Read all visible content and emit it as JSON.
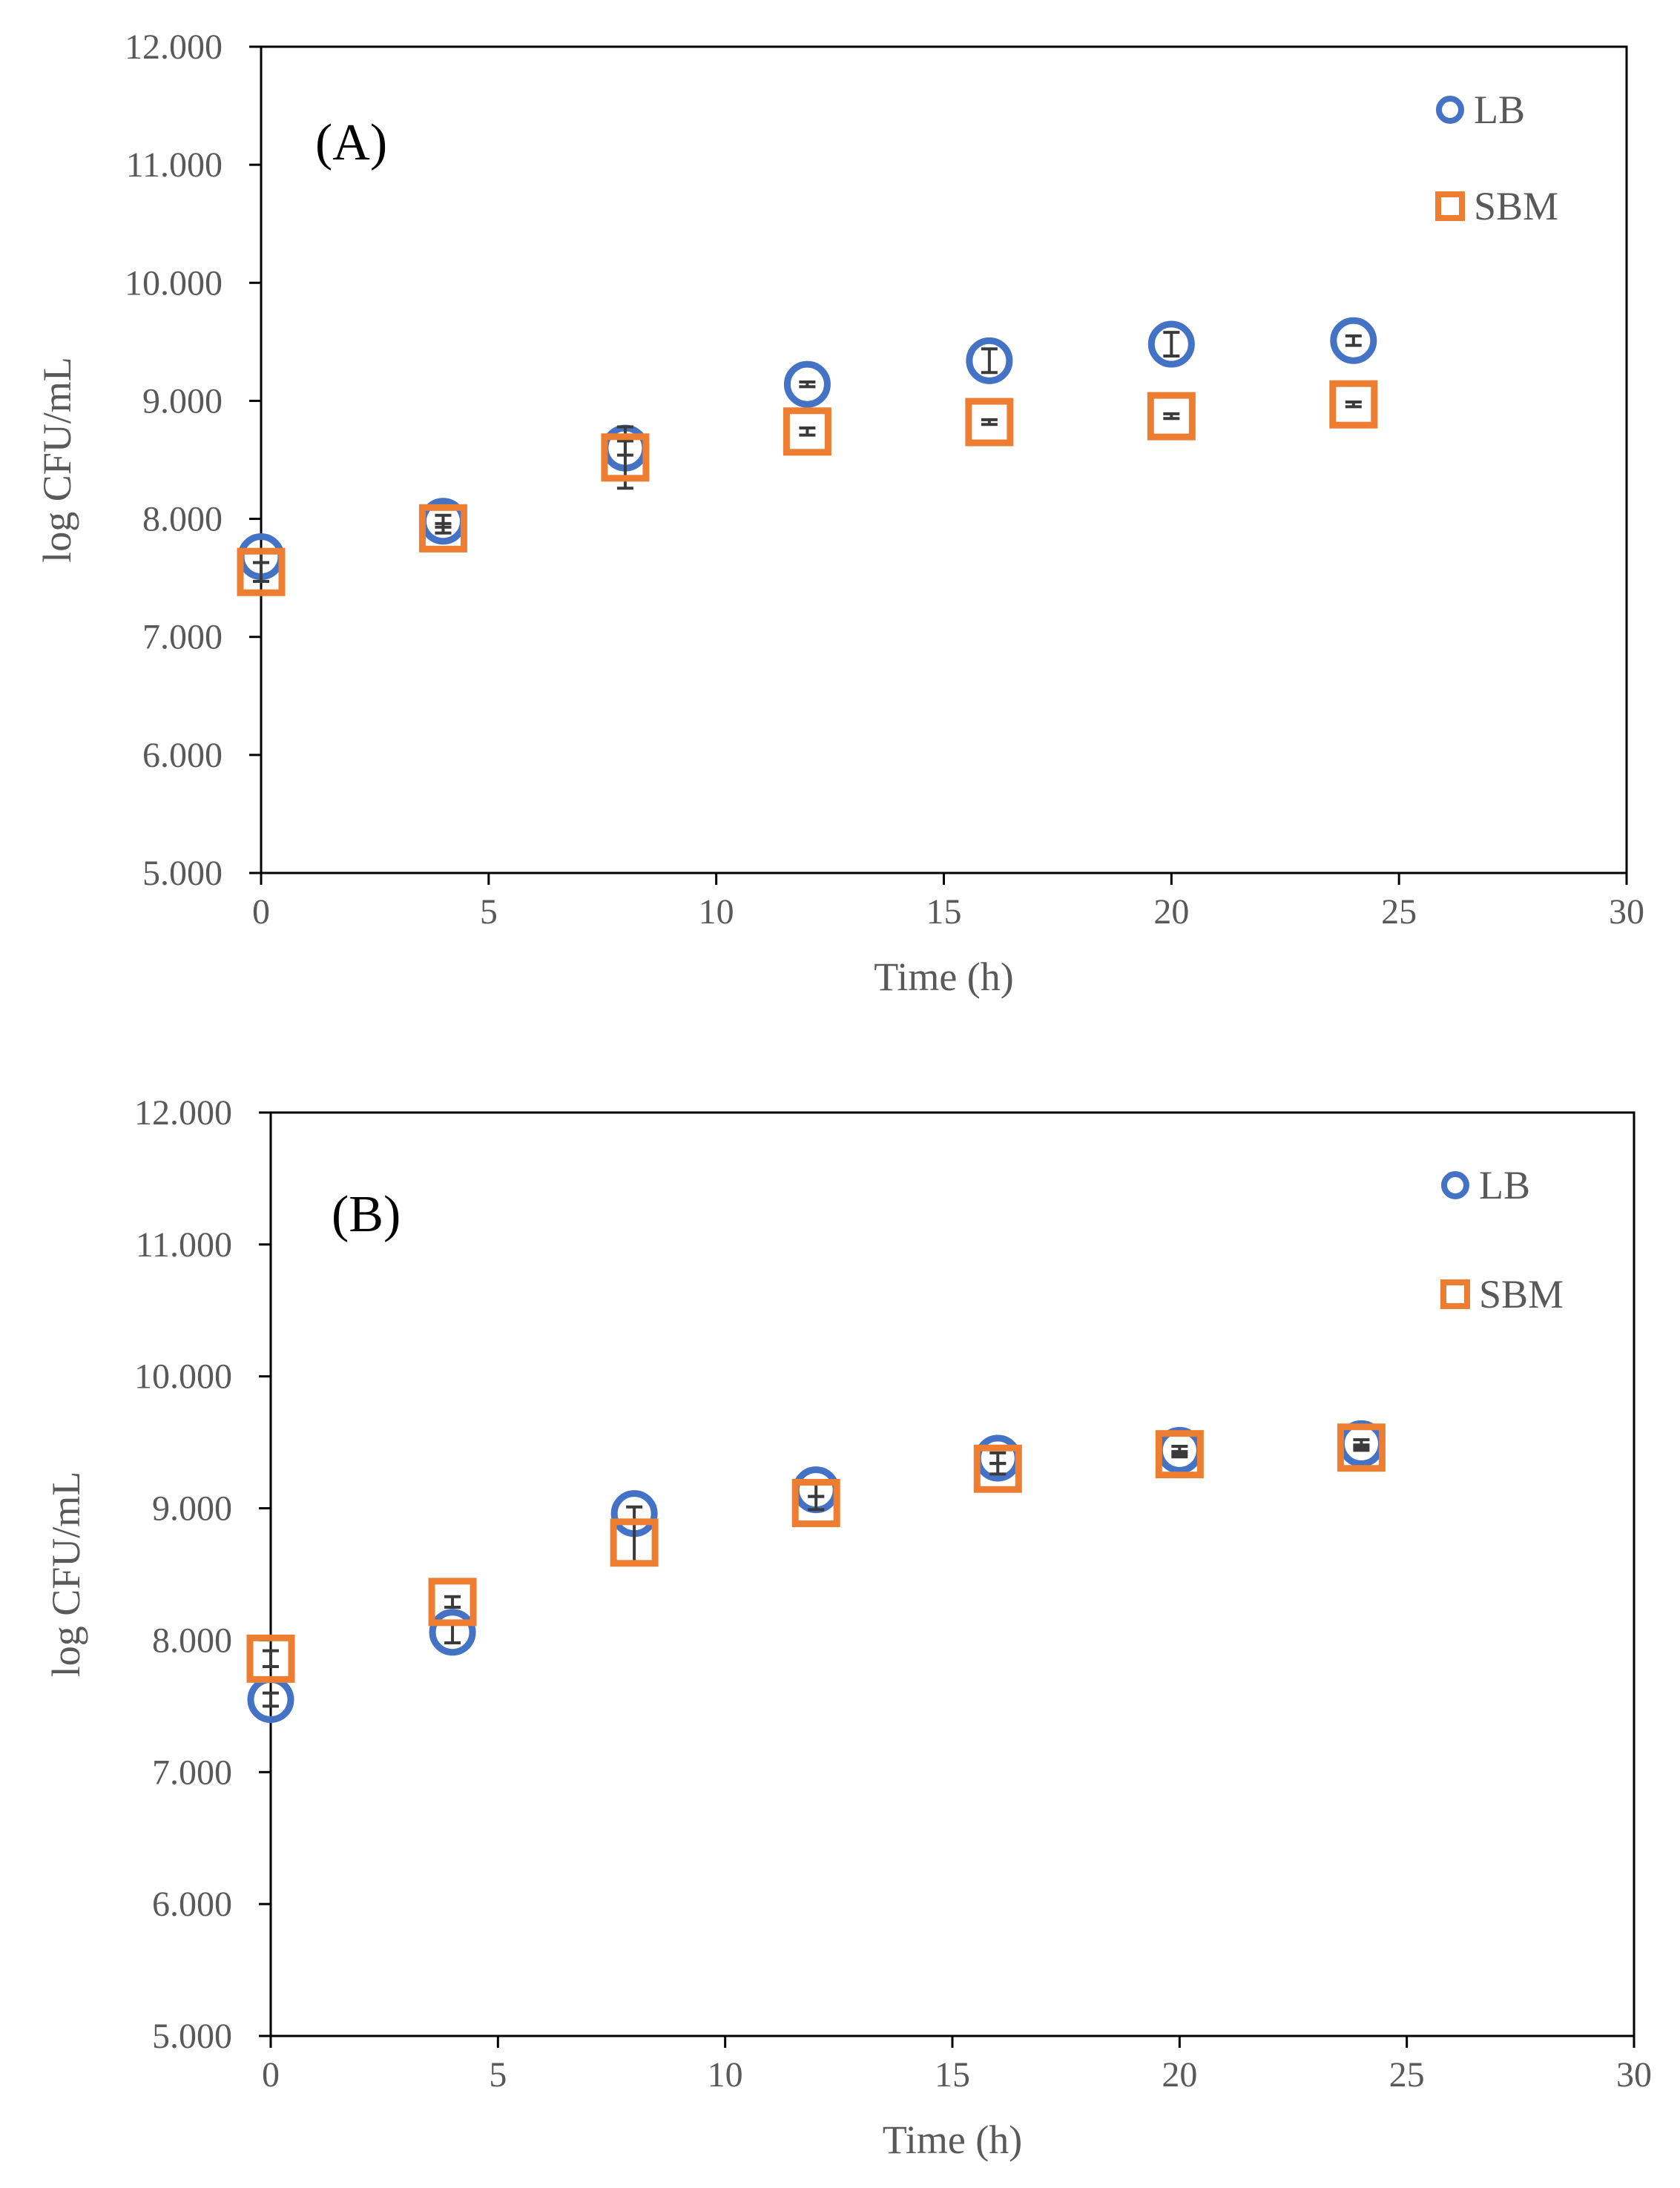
{
  "colors": {
    "lb": "#4472C4",
    "sbm": "#ED7D31",
    "errbar": "#3a3a3a",
    "axis": "#000000",
    "text": "#595959"
  },
  "chart_data": [
    {
      "type": "scatter",
      "panel_label": "(A)",
      "xlabel": "Time (h)",
      "ylabel": "log CFU/mL",
      "xlim": [
        0,
        30
      ],
      "ylim": [
        5,
        12
      ],
      "xticks": [
        0,
        5,
        10,
        15,
        20,
        25,
        30
      ],
      "xtick_labels": [
        "0",
        "5",
        "10",
        "15",
        "20",
        "25",
        "30"
      ],
      "yticks": [
        5,
        6,
        7,
        8,
        9,
        10,
        11,
        12
      ],
      "ytick_labels": [
        "5.000",
        "6.000",
        "7.000",
        "8.000",
        "9.000",
        "10.000",
        "11.000",
        "12.000"
      ],
      "legend_position": "top-right",
      "series": [
        {
          "name": "LB",
          "marker": "circle",
          "x": [
            0,
            4,
            8,
            12,
            16,
            20,
            24
          ],
          "y": [
            7.68,
            7.98,
            8.6,
            9.14,
            9.34,
            9.48,
            9.51
          ],
          "err": [
            0.05,
            0.05,
            0.06,
            0.02,
            0.1,
            0.1,
            0.04
          ]
        },
        {
          "name": "SBM",
          "marker": "square",
          "x": [
            0,
            4,
            8,
            12,
            16,
            20,
            24
          ],
          "y": [
            7.55,
            7.92,
            8.52,
            8.74,
            8.82,
            8.87,
            8.97
          ],
          "err": [
            0.08,
            0.04,
            0.26,
            0.03,
            0.02,
            0.02,
            0.02
          ]
        }
      ]
    },
    {
      "type": "scatter",
      "panel_label": "(B)",
      "xlabel": "Time (h)",
      "ylabel": "log CFU/mL",
      "xlim": [
        0,
        30
      ],
      "ylim": [
        5,
        12
      ],
      "xticks": [
        0,
        5,
        10,
        15,
        20,
        25,
        30
      ],
      "xtick_labels": [
        "0",
        "5",
        "10",
        "15",
        "20",
        "25",
        "30"
      ],
      "yticks": [
        5,
        6,
        7,
        8,
        9,
        10,
        11,
        12
      ],
      "ytick_labels": [
        "5.000",
        "6.000",
        "7.000",
        "8.000",
        "9.000",
        "10.000",
        "11.000",
        "12.000"
      ],
      "legend_position": "top-right",
      "series": [
        {
          "name": "LB",
          "marker": "circle",
          "x": [
            0,
            4,
            8,
            12,
            16,
            20,
            24
          ],
          "y": [
            7.55,
            8.06,
            8.96,
            9.14,
            9.38,
            9.44,
            9.49
          ],
          "err": [
            0.05,
            0.08,
            0.05,
            0.05,
            0.04,
            0.03,
            0.03
          ]
        },
        {
          "name": "SBM",
          "marker": "square",
          "x": [
            0,
            4,
            8,
            12,
            16,
            20,
            24
          ],
          "y": [
            7.86,
            8.29,
            8.74,
            9.04,
            9.3,
            9.41,
            9.46
          ],
          "err": [
            0.06,
            0.04,
            0.17,
            0.05,
            0.04,
            0.02,
            0.02
          ]
        }
      ]
    }
  ]
}
